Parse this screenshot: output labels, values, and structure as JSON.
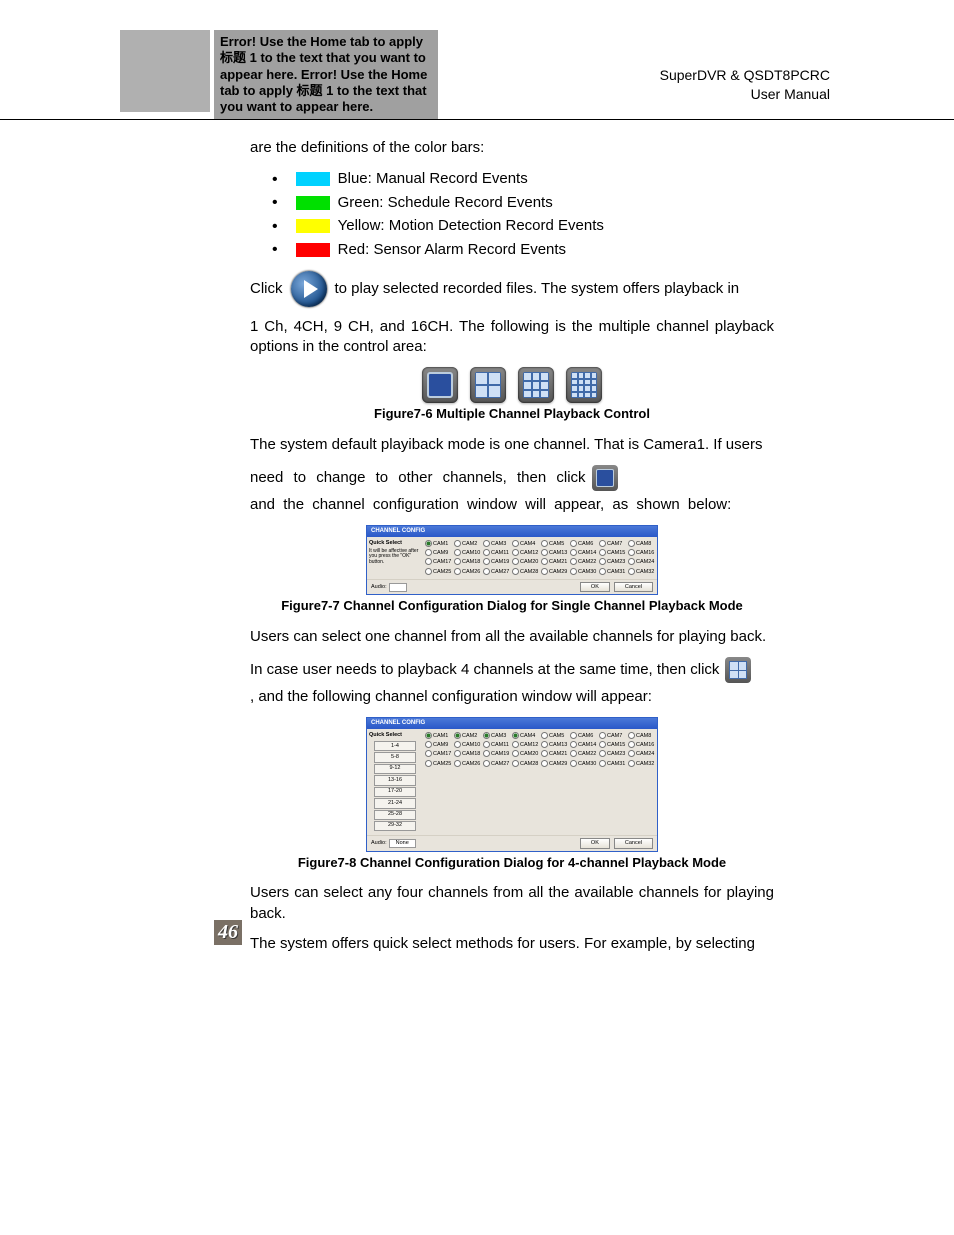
{
  "header": {
    "error_text": "Error! Use the Home tab to apply 标题 1 to the text that you want to appear here. Error! Use the Home tab to apply 标题 1 to the text that you want to appear here.",
    "product": "SuperDVR & QSDT8PCRC",
    "doc_type": "User Manual"
  },
  "page_number": "46",
  "colors": {
    "swatch_blue": "#00d2ff",
    "swatch_green": "#00e000",
    "swatch_yellow": "#ffff00",
    "swatch_red": "#ff0000",
    "header_bg": "#a0a0a0"
  },
  "body": {
    "intro": "are the definitions of the color bars:",
    "items": [
      {
        "label": "Blue: Manual Record Events",
        "swatch_key": "swatch_blue"
      },
      {
        "label": "Green: Schedule Record Events",
        "swatch_key": "swatch_green"
      },
      {
        "label": "Yellow: Motion Detection Record Events",
        "swatch_key": "swatch_yellow"
      },
      {
        "label": "Red: Sensor Alarm Record Events",
        "swatch_key": "swatch_red"
      }
    ],
    "click_prefix": "Click",
    "click_suffix": "to play selected recorded files. The system offers playback in",
    "para_1ch": "1 Ch, 4CH, 9 CH, and 16CH. The following is the multiple channel playback options in the control area:",
    "fig76_caption": "Figure7-6  Multiple Channel Playback Control",
    "para_default_a": "The system default playiback mode is one channel. That is Camera1. If users",
    "para_default_b_pre": "need to change to other channels, then click",
    "para_default_b_post": "and the channel configuration window will appear, as shown below:",
    "fig77_caption": "Figure7-7  Channel Configuration Dialog for Single Channel Playback Mode",
    "para_select_one": "Users can select one channel from all the available channels for playing back.",
    "para_4ch_pre": "In case user needs to playback 4 channels at the same time, then click",
    "para_4ch_post": ", and the following channel configuration window will appear:",
    "fig78_caption": "Figure7-8  Channel Configuration Dialog for 4-channel Playback Mode",
    "para_select_four": "Users can select any four channels from all the available channels for playing back.",
    "para_quick": "The system offers quick select methods for users. For example, by selecting"
  },
  "dlg": {
    "title": "CHANNEL CONFIG",
    "quick_header": "Quick Select",
    "note_text": "It will be affective after you press the \"OK\" button.",
    "audio_label": "Audio:",
    "audio_value_none": "None",
    "ok": "OK",
    "cancel": "Cancel",
    "cams": [
      "CAM1",
      "CAM2",
      "CAM3",
      "CAM4",
      "CAM5",
      "CAM6",
      "CAM7",
      "CAM8",
      "CAM9",
      "CAM10",
      "CAM11",
      "CAM12",
      "CAM13",
      "CAM14",
      "CAM15",
      "CAM16",
      "CAM17",
      "CAM18",
      "CAM19",
      "CAM20",
      "CAM21",
      "CAM22",
      "CAM23",
      "CAM24",
      "CAM25",
      "CAM26",
      "CAM27",
      "CAM28",
      "CAM29",
      "CAM30",
      "CAM31",
      "CAM32"
    ],
    "quick_buttons": [
      "1-4",
      "5-8",
      "9-12",
      "13-16",
      "17-20",
      "21-24",
      "25-28",
      "29-32"
    ],
    "selected_single": [
      0
    ],
    "selected_quad": [
      0,
      1,
      2,
      3
    ]
  }
}
